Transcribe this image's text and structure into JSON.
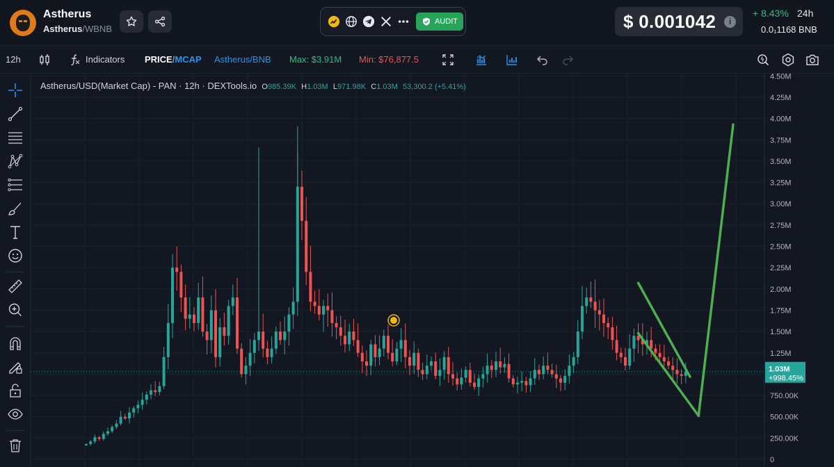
{
  "header": {
    "token_name": "Astherus",
    "pair_base": "Astherus",
    "pair_sep": "/",
    "pair_quote": "WBNB",
    "audit_label": "AUDIT",
    "price": "$ 0.001042",
    "change_pct": "+ 8.43%",
    "change_period": "24h",
    "bnb_price": "0.0₁1168  BNB",
    "socials": [
      "chart-icon",
      "globe-icon",
      "telegram-icon",
      "x-icon",
      "more-icon"
    ]
  },
  "toolbar": {
    "interval": "12h",
    "indicators": "Indicators",
    "price": "PRICE",
    "slash": "/",
    "mcap": "MCAP",
    "pair": "Astherus/BNB",
    "max": "Max: $3.91M",
    "min": "Min: $76,877.5"
  },
  "legend": {
    "title": "Astherus/USD(Market Cap) - PAN · 12h · DEXTools.io",
    "o_key": "O",
    "o_val": "985.39K",
    "h_key": "H",
    "h_val": "1.03M",
    "l_key": "L",
    "l_val": "971.98K",
    "c_key": "C",
    "c_val": "1.03M",
    "change": "53,300.2 (+5.41%)"
  },
  "colors": {
    "up": "#26a69a",
    "down": "#ef5350",
    "drawing": "#4caf50",
    "accent": "#2196f3"
  },
  "chart_data": {
    "type": "candlestick",
    "y_ticks": [
      "4.50M",
      "4.25M",
      "4.00M",
      "3.75M",
      "3.50M",
      "3.25M",
      "3.00M",
      "2.75M",
      "2.50M",
      "2.25M",
      "2.00M",
      "1.75M",
      "1.50M",
      "1.25M",
      "1.00M",
      "750.00K",
      "500.00K",
      "250.00K",
      "0"
    ],
    "ylim": [
      0,
      4500000
    ],
    "last_value_label": "1.03M",
    "last_change_label": "+998.45%",
    "last_value": 1030000,
    "closes": [
      180000,
      210000,
      260000,
      240000,
      300000,
      330000,
      380000,
      420000,
      500000,
      480000,
      550000,
      600000,
      640000,
      700000,
      760000,
      810000,
      790000,
      860000,
      1200000,
      1600000,
      2250000,
      2200000,
      1900000,
      1650000,
      1700000,
      1600000,
      1900000,
      1500000,
      1400000,
      1750000,
      1200000,
      1550000,
      1450000,
      1800000,
      1900000,
      1300000,
      1000000,
      1100000,
      1250000,
      1400000,
      1500000,
      1300000,
      1200000,
      1300000,
      1500000,
      1400000,
      1500000,
      1700000,
      1850000,
      3200000,
      2800000,
      2200000,
      1850000,
      1800000,
      1700000,
      1800000,
      1750000,
      1600000,
      1550000,
      1450000,
      1350000,
      1500000,
      1400000,
      1250000,
      1150000,
      1100000,
      1350000,
      1200000,
      1300000,
      1450000,
      1250000,
      1150000,
      1300000,
      1400000,
      1200000,
      1100000,
      1250000,
      1050000,
      1000000,
      1100000,
      1150000,
      980000,
      1050000,
      1200000,
      1000000,
      950000,
      880000,
      960000,
      1050000,
      900000,
      850000,
      950000,
      1000000,
      1100000,
      1050000,
      1150000,
      1080000,
      1120000,
      950000,
      880000,
      900000,
      920000,
      870000,
      950000,
      1050000,
      1000000,
      1100000,
      1050000,
      1000000,
      950000,
      900000,
      980000,
      1100000,
      1200000,
      1500000,
      1800000,
      1900000,
      1850000,
      1750000,
      1700000,
      1600000,
      1550000,
      1400000,
      1250000,
      1200000,
      1100000,
      1300000,
      1450000,
      1400000,
      1350000,
      1400000,
      1300000,
      1250000,
      1200000,
      1150000,
      1100000,
      1050000,
      1000000,
      980000,
      1030000
    ],
    "annotations": [
      {
        "type": "line",
        "from": [
          128,
          2070000
        ],
        "to": [
          140,
          970000
        ]
      },
      {
        "type": "line",
        "from": [
          128,
          1480000
        ],
        "to": [
          142,
          510000
        ]
      },
      {
        "type": "line",
        "from": [
          142,
          520000
        ],
        "to": [
          150,
          3930000
        ]
      }
    ]
  }
}
